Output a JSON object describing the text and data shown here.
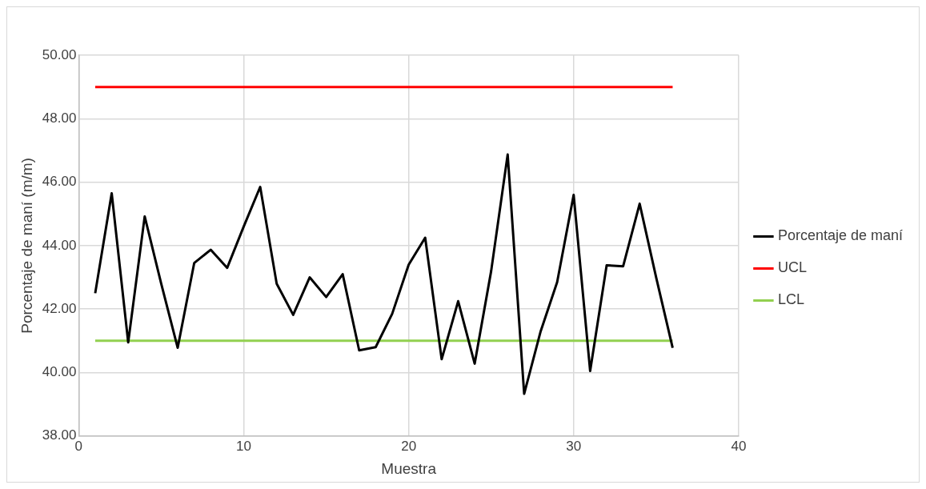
{
  "chart_data": {
    "type": "line",
    "xlabel": "Muestra",
    "ylabel": "Porcentaje de maní (m/m)",
    "x": [
      1,
      2,
      3,
      4,
      5,
      6,
      7,
      8,
      9,
      10,
      11,
      12,
      13,
      14,
      15,
      16,
      17,
      18,
      19,
      20,
      21,
      22,
      23,
      24,
      25,
      26,
      27,
      28,
      29,
      30,
      31,
      32,
      33,
      34,
      35,
      36
    ],
    "series": [
      {
        "name": "Porcentaje de maní",
        "color": "#000000",
        "values": [
          42.5,
          45.65,
          40.95,
          44.92,
          42.8,
          40.78,
          43.45,
          43.87,
          43.3,
          44.6,
          45.85,
          42.8,
          41.82,
          43.0,
          42.38,
          43.1,
          40.7,
          40.8,
          41.85,
          43.4,
          44.25,
          40.42,
          42.25,
          40.28,
          43.2,
          46.87,
          39.33,
          41.3,
          42.85,
          45.6,
          40.05,
          43.38,
          43.35,
          45.32,
          43.0,
          40.78
        ]
      },
      {
        "name": "UCL",
        "color": "#ff0000",
        "values": [
          49,
          49,
          49,
          49,
          49,
          49,
          49,
          49,
          49,
          49,
          49,
          49,
          49,
          49,
          49,
          49,
          49,
          49,
          49,
          49,
          49,
          49,
          49,
          49,
          49,
          49,
          49,
          49,
          49,
          49,
          49,
          49,
          49,
          49,
          49,
          49
        ]
      },
      {
        "name": "LCL",
        "color": "#92d050",
        "values": [
          41,
          41,
          41,
          41,
          41,
          41,
          41,
          41,
          41,
          41,
          41,
          41,
          41,
          41,
          41,
          41,
          41,
          41,
          41,
          41,
          41,
          41,
          41,
          41,
          41,
          41,
          41,
          41,
          41,
          41,
          41,
          41,
          41,
          41,
          41,
          41
        ]
      }
    ],
    "xlim": [
      0,
      40
    ],
    "xticks": [
      0,
      10,
      20,
      30,
      40
    ],
    "ylim": [
      38,
      50
    ],
    "yticks": [
      {
        "value": 38,
        "label": "38.00"
      },
      {
        "value": 40,
        "label": "40.00"
      },
      {
        "value": 42,
        "label": "42.00"
      },
      {
        "value": 44,
        "label": "44.00"
      },
      {
        "value": 46,
        "label": "46.00"
      },
      {
        "value": 48,
        "label": "48.00"
      },
      {
        "value": 50,
        "label": "50.00"
      }
    ],
    "grid": true,
    "legend": "right",
    "marker": "none",
    "line_style": "solid"
  }
}
